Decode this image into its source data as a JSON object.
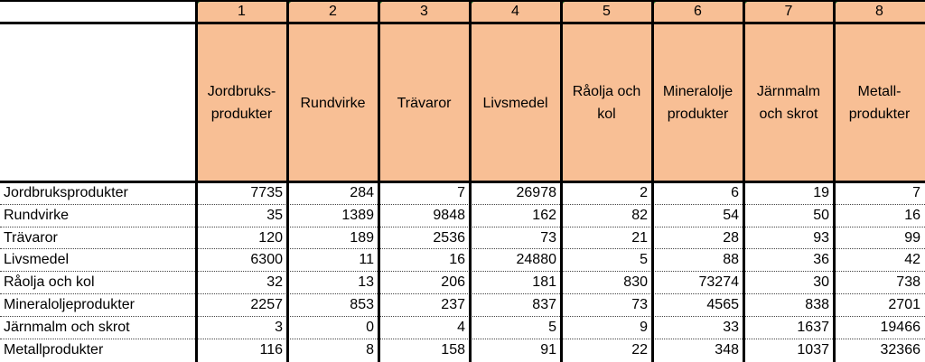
{
  "table": {
    "column_numbers": [
      "1",
      "2",
      "3",
      "4",
      "5",
      "6",
      "7",
      "8"
    ],
    "column_headers": [
      "Jordbruks-\nprodukter",
      "Rundvirke",
      "Trävaror",
      "Livsmedel",
      "Råolja och\nkol",
      "Mineralolje\nprodukter",
      "Järnmalm\noch skrot",
      "Metall-\nprodukter"
    ],
    "rows": [
      {
        "label": "Jordbruksprodukter",
        "values": [
          "7735",
          "284",
          "7",
          "26978",
          "2",
          "6",
          "19",
          "7"
        ]
      },
      {
        "label": "Rundvirke",
        "values": [
          "35",
          "1389",
          "9848",
          "162",
          "82",
          "54",
          "50",
          "16"
        ]
      },
      {
        "label": "Trävaror",
        "values": [
          "120",
          "189",
          "2536",
          "73",
          "21",
          "28",
          "93",
          "99"
        ]
      },
      {
        "label": "Livsmedel",
        "values": [
          "6300",
          "11",
          "16",
          "24880",
          "5",
          "88",
          "36",
          "42"
        ]
      },
      {
        "label": "Råolja och kol",
        "values": [
          "32",
          "13",
          "206",
          "181",
          "830",
          "73274",
          "30",
          "738"
        ]
      },
      {
        "label": "Mineraloljeprodukter",
        "values": [
          "2257",
          "853",
          "237",
          "837",
          "73",
          "4565",
          "838",
          "2701"
        ]
      },
      {
        "label": "Järnmalm och skrot",
        "values": [
          "3",
          "0",
          "4",
          "5",
          "9",
          "33",
          "1637",
          "19466"
        ]
      },
      {
        "label": "Metallprodukter",
        "values": [
          "116",
          "8",
          "158",
          "91",
          "22",
          "348",
          "1037",
          "32366"
        ]
      }
    ]
  },
  "colors": {
    "header_fill": "#f8bf95",
    "corner_marker": "#1f7a2e"
  }
}
